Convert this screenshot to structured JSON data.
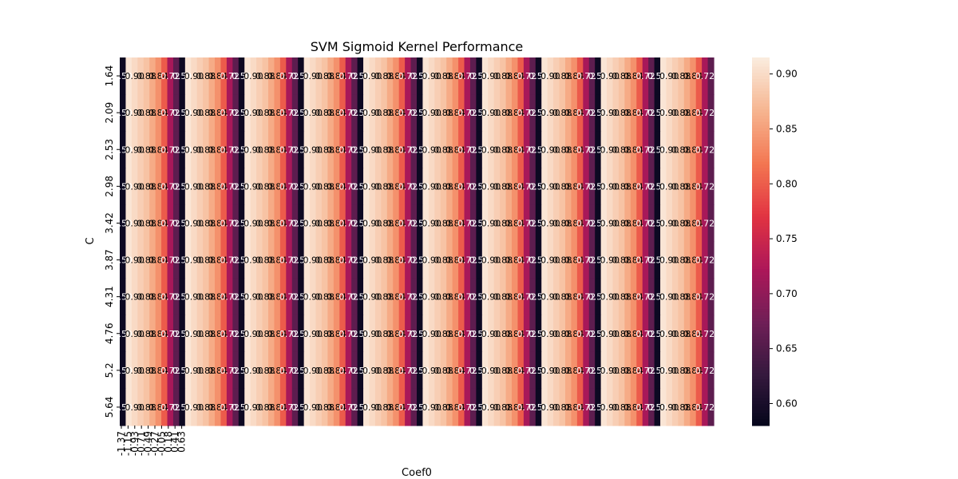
{
  "chart_data": {
    "type": "heatmap",
    "title": "SVM Sigmoid Kernel Performance",
    "xlabel": "Coef0",
    "ylabel": "C",
    "x_tick_labels": [
      "-1.37",
      "-1.15",
      "-0.93",
      "-0.71",
      "-0.49",
      "-0.27",
      "-0.05",
      "0.18",
      "0.41",
      "0.63"
    ],
    "y_tick_labels": [
      "1.64",
      "2.09",
      "2.53",
      "2.98",
      "3.42",
      "3.87",
      "4.31",
      "4.76",
      "5.2",
      "5.64"
    ],
    "colorbar": {
      "min": 0.58,
      "max": 0.915,
      "ticks": [
        "0.60",
        "0.65",
        "0.70",
        "0.75",
        "0.80",
        "0.85",
        "0.90"
      ],
      "tick_values": [
        0.6,
        0.65,
        0.7,
        0.75,
        0.8,
        0.85,
        0.9
      ]
    },
    "column_values": [
      0.59,
      0.91,
      0.9,
      0.89,
      0.88,
      0.86,
      0.84,
      0.8,
      0.72,
      0.66,
      0.59,
      0.91,
      0.9,
      0.89,
      0.88,
      0.86,
      0.84,
      0.8,
      0.72,
      0.66,
      0.59,
      0.91,
      0.9,
      0.89,
      0.88,
      0.86,
      0.84,
      0.8,
      0.72,
      0.66,
      0.59,
      0.91,
      0.9,
      0.89,
      0.88,
      0.86,
      0.84,
      0.8,
      0.72,
      0.66,
      0.59,
      0.91,
      0.9,
      0.89,
      0.88,
      0.86,
      0.84,
      0.8,
      0.72,
      0.66,
      0.59,
      0.91,
      0.9,
      0.89,
      0.88,
      0.86,
      0.84,
      0.8,
      0.72,
      0.66,
      0.59,
      0.91,
      0.9,
      0.89,
      0.88,
      0.86,
      0.84,
      0.8,
      0.72,
      0.66,
      0.59,
      0.91,
      0.9,
      0.89,
      0.88,
      0.86,
      0.84,
      0.8,
      0.72,
      0.66,
      0.59,
      0.91,
      0.9,
      0.89,
      0.88,
      0.86,
      0.84,
      0.8,
      0.72,
      0.66,
      0.59,
      0.91,
      0.9,
      0.89,
      0.88,
      0.86,
      0.84,
      0.8,
      0.72,
      0.66
    ],
    "grid": false,
    "colormap": "rocket",
    "colormap_stops": [
      "#03051a",
      "#35193e",
      "#701f57",
      "#ad1759",
      "#e13342",
      "#f37651",
      "#f6b48f",
      "#faebdd"
    ]
  }
}
